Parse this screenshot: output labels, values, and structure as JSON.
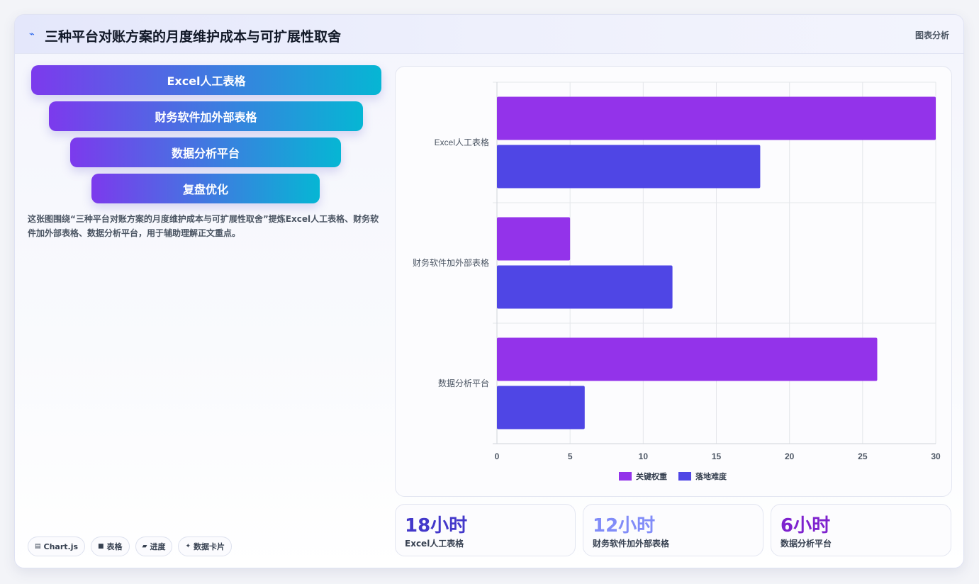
{
  "header": {
    "icon": "trend-line-icon",
    "title": "三种平台对账方案的月度维护成本与可扩展性取舍",
    "tag": "图表分析"
  },
  "funnel": [
    {
      "label": "Excel人工表格"
    },
    {
      "label": "财务软件加外部表格"
    },
    {
      "label": "数据分析平台"
    },
    {
      "label": "复盘优化"
    }
  ],
  "description": "这张图围绕“三种平台对账方案的月度维护成本与可扩展性取舍”提炼Excel人工表格、财务软件加外部表格、数据分析平台，用于辅助理解正文重点。",
  "chips": [
    {
      "icon": "chart-icon",
      "glyph": "▤",
      "label": "Chart.js"
    },
    {
      "icon": "table-icon",
      "glyph": "■",
      "label": "表格"
    },
    {
      "icon": "progress-icon",
      "glyph": "▰",
      "label": "进度"
    },
    {
      "icon": "sparkle-icon",
      "glyph": "✦",
      "label": "数据卡片"
    }
  ],
  "chart_data": {
    "type": "bar",
    "orientation": "horizontal",
    "categories": [
      "Excel人工表格",
      "财务软件加外部表格",
      "数据分析平台"
    ],
    "series": [
      {
        "name": "关键权重",
        "color": "#9333ea",
        "values": [
          30,
          5,
          26
        ]
      },
      {
        "name": "落地难度",
        "color": "#4f46e5",
        "values": [
          18,
          12,
          6
        ]
      }
    ],
    "xlim": [
      0,
      30
    ],
    "xticks": [
      0,
      5,
      10,
      15,
      20,
      25,
      30
    ],
    "grid": true,
    "legend": "bottom"
  },
  "stats": [
    {
      "value": "18小时",
      "label": "Excel人工表格",
      "color": "#4338ca"
    },
    {
      "value": "12小时",
      "label": "财务软件加外部表格",
      "color": "#818cf8"
    },
    {
      "value": "6小时",
      "label": "数据分析平台",
      "color": "#7e22ce"
    }
  ]
}
